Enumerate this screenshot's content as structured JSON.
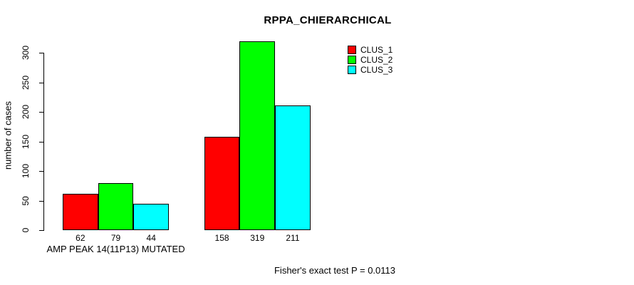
{
  "chart_data": {
    "type": "bar",
    "title": "RPPA_CHIERARCHICAL",
    "ylabel": "number of cases",
    "xlabel": "",
    "ylim": [
      0,
      300
    ],
    "yticks": [
      0,
      50,
      100,
      150,
      200,
      250,
      300
    ],
    "grid": false,
    "legend_position": "top-right",
    "groups": [
      "AMP PEAK 14(11P13) MUTATED",
      ""
    ],
    "series": [
      {
        "name": "CLUS_1",
        "color": "#ff0000",
        "values": [
          62,
          158
        ]
      },
      {
        "name": "CLUS_2",
        "color": "#00ff00",
        "values": [
          79,
          319
        ]
      },
      {
        "name": "CLUS_3",
        "color": "#00ffff",
        "values": [
          44,
          211
        ]
      }
    ],
    "annotation": "Fisher's exact test P = 0.0113"
  }
}
